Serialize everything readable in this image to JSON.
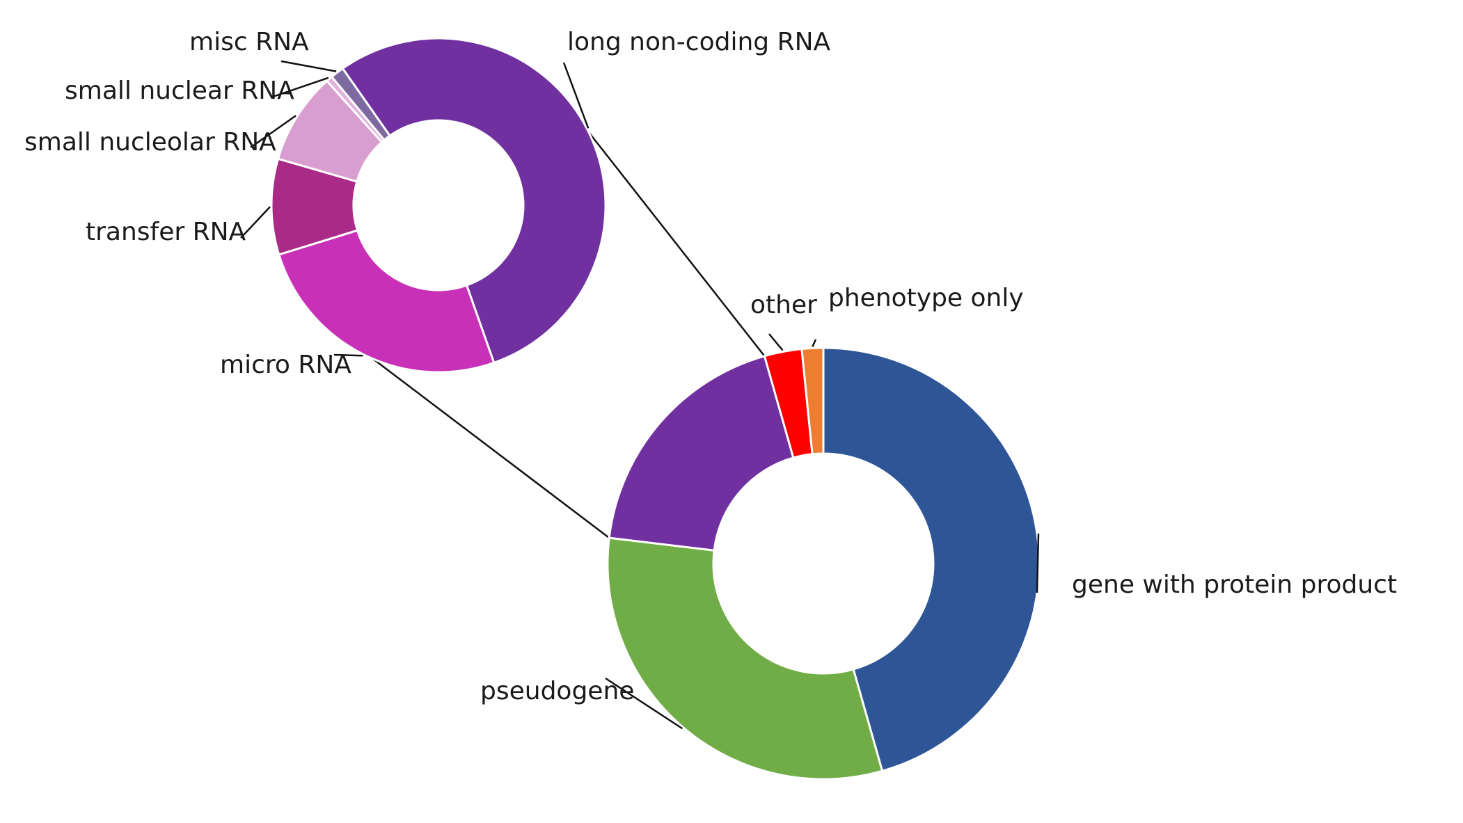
{
  "chart_data": [
    {
      "type": "pie",
      "variant": "donut",
      "role": "main",
      "title": "",
      "start_angle_deg": 0,
      "direction": "clockwise",
      "slices": [
        {
          "label": "gene with protein product",
          "value": 45.6,
          "color": "#2e5596"
        },
        {
          "label": "pseudogene",
          "value": 31.3,
          "color": "#70ad47"
        },
        {
          "label": "",
          "value": 18.7,
          "color": "#7030a0",
          "expanded_as": "non-coding RNA breakdown"
        },
        {
          "label": "other",
          "value": 2.8,
          "color": "#ff0000"
        },
        {
          "label": "phenotype only",
          "value": 1.6,
          "color": "#ed7d31"
        }
      ]
    },
    {
      "type": "pie",
      "variant": "donut",
      "role": "breakdown",
      "title": "",
      "breaks_down": "unlabelled purple slice of main chart",
      "start_angle_deg": -35,
      "direction": "clockwise",
      "slices": [
        {
          "label": "long non-coding RNA",
          "value": 53.9,
          "color": "#7030a0"
        },
        {
          "label": "micro RNA",
          "value": 25.4,
          "color": "#c830b8"
        },
        {
          "label": "transfer RNA",
          "value": 9.2,
          "color": "#aa2a87"
        },
        {
          "label": "small nucleolar RNA",
          "value": 8.8,
          "color": "#d99ed0"
        },
        {
          "label": "small nuclear RNA",
          "value": 0.6,
          "color": "#e2b2de"
        },
        {
          "label": "misc RNA",
          "value": 1.3,
          "color": "#7d6aa0"
        }
      ]
    }
  ]
}
